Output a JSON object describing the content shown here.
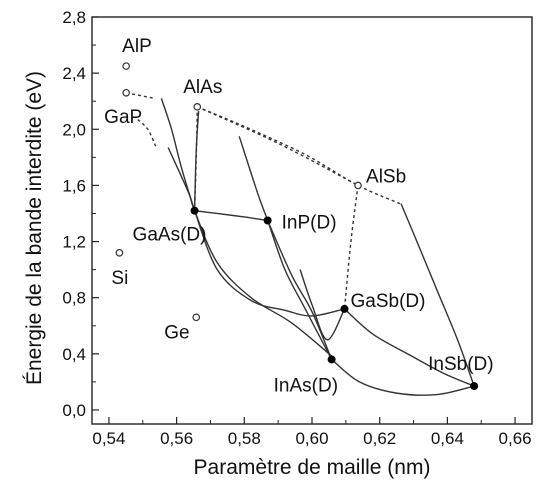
{
  "chart_data": {
    "type": "scatter",
    "xlabel": "Paramètre de maille (nm)",
    "ylabel": "Énergie de la bande interdite (eV)",
    "xlim": [
      0.535,
      0.665
    ],
    "ylim": [
      -0.1,
      2.8
    ],
    "x_ticks": [
      "0,54",
      "0,56",
      "0,58",
      "0,60",
      "0,62",
      "0,64",
      "0,66"
    ],
    "y_ticks": [
      "0,0",
      "0,4",
      "0,8",
      "1,2",
      "1,6",
      "2,0",
      "2,4",
      "2,8"
    ],
    "grid": false,
    "points": [
      {
        "label": "AlP",
        "x": 0.5451,
        "y": 2.45,
        "marker": "open"
      },
      {
        "label": "GaP",
        "x": 0.5451,
        "y": 2.26,
        "marker": "open"
      },
      {
        "label": "AlAs",
        "x": 0.5661,
        "y": 2.16,
        "marker": "open"
      },
      {
        "label": "AlSb",
        "x": 0.6136,
        "y": 1.6,
        "marker": "open"
      },
      {
        "label": "Si",
        "x": 0.5431,
        "y": 1.12,
        "marker": "open"
      },
      {
        "label": "Ge",
        "x": 0.5658,
        "y": 0.66,
        "marker": "open"
      },
      {
        "label": "GaAs(D)",
        "x": 0.5653,
        "y": 1.42,
        "marker": "filled"
      },
      {
        "label": "InP(D)",
        "x": 0.5869,
        "y": 1.35,
        "marker": "filled"
      },
      {
        "label": "GaSb(D)",
        "x": 0.6096,
        "y": 0.72,
        "marker": "filled"
      },
      {
        "label": "InAs(D)",
        "x": 0.6058,
        "y": 0.36,
        "marker": "filled"
      },
      {
        "label": "InSb(D)",
        "x": 0.6479,
        "y": 0.17,
        "marker": "filled"
      }
    ],
    "solid_curves": [
      [
        [
          0.5555,
          2.22
        ],
        [
          0.5585,
          2.0
        ],
        [
          0.5615,
          1.72
        ],
        [
          0.5653,
          1.42
        ]
      ],
      [
        [
          0.5665,
          2.13
        ],
        [
          0.5658,
          1.85
        ],
        [
          0.5653,
          1.42
        ]
      ],
      [
        [
          0.5653,
          1.42
        ],
        [
          0.572,
          1.4
        ],
        [
          0.58,
          1.375
        ],
        [
          0.5869,
          1.35
        ]
      ],
      [
        [
          0.5575,
          1.87
        ],
        [
          0.5635,
          1.55
        ],
        [
          0.5653,
          1.42
        ],
        [
          0.572,
          1.05
        ],
        [
          0.582,
          0.8
        ],
        [
          0.594,
          0.62
        ],
        [
          0.606,
          0.38
        ]
      ],
      [
        [
          0.5653,
          1.42
        ],
        [
          0.572,
          1.0
        ],
        [
          0.582,
          0.78
        ],
        [
          0.592,
          0.71
        ],
        [
          0.6,
          0.67
        ],
        [
          0.6096,
          0.72
        ]
      ],
      [
        [
          0.5785,
          1.95
        ],
        [
          0.584,
          1.54
        ],
        [
          0.5869,
          1.35
        ],
        [
          0.592,
          1.0
        ],
        [
          0.598,
          0.72
        ],
        [
          0.6058,
          0.36
        ]
      ],
      [
        [
          0.5869,
          1.35
        ],
        [
          0.594,
          0.96
        ],
        [
          0.6,
          0.7
        ],
        [
          0.6058,
          0.36
        ]
      ],
      [
        [
          0.5965,
          1.0
        ],
        [
          0.6,
          0.75
        ],
        [
          0.6045,
          0.5
        ],
        [
          0.6096,
          0.72
        ]
      ],
      [
        [
          0.6058,
          0.36
        ],
        [
          0.614,
          0.2
        ],
        [
          0.625,
          0.12
        ],
        [
          0.637,
          0.11
        ],
        [
          0.6479,
          0.17
        ]
      ],
      [
        [
          0.6096,
          0.72
        ],
        [
          0.618,
          0.54
        ],
        [
          0.629,
          0.39
        ],
        [
          0.639,
          0.26
        ],
        [
          0.6479,
          0.17
        ]
      ],
      [
        [
          0.6263,
          1.47
        ],
        [
          0.631,
          1.2
        ],
        [
          0.637,
          0.85
        ],
        [
          0.643,
          0.5
        ],
        [
          0.6479,
          0.17
        ]
      ]
    ],
    "dashed_curves": [
      [
        [
          0.5451,
          2.26
        ],
        [
          0.5535,
          2.22
        ]
      ],
      [
        [
          0.5485,
          2.07
        ],
        [
          0.5515,
          2.0
        ],
        [
          0.5538,
          1.88
        ]
      ],
      [
        [
          0.5661,
          2.16
        ],
        [
          0.5658,
          1.8
        ],
        [
          0.5653,
          1.42
        ]
      ],
      [
        [
          0.5661,
          2.16
        ],
        [
          0.59,
          1.9
        ],
        [
          0.6136,
          1.6
        ]
      ],
      [
        [
          0.5661,
          2.16
        ],
        [
          0.58,
          2.02
        ],
        [
          0.598,
          1.82
        ],
        [
          0.6136,
          1.6
        ],
        [
          0.626,
          1.47
        ]
      ],
      [
        [
          0.6136,
          1.6
        ],
        [
          0.6115,
          1.2
        ],
        [
          0.6096,
          0.72
        ]
      ]
    ]
  }
}
